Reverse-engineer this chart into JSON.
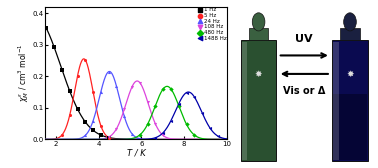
{
  "xlabel": "T / K",
  "xlim": [
    1.5,
    10
  ],
  "ylim": [
    0,
    0.42
  ],
  "yticks": [
    0.0,
    0.1,
    0.2,
    0.3,
    0.4
  ],
  "xticks": [
    2,
    4,
    6,
    8,
    10
  ],
  "frequencies": [
    1,
    5,
    24,
    108,
    480,
    1488
  ],
  "colors": [
    "#000000",
    "#ff2222",
    "#5555ff",
    "#dd44dd",
    "#00bb00",
    "#0000aa"
  ],
  "markers": [
    "s",
    "o",
    "^",
    "v",
    "D",
    "<"
  ],
  "peak_temps": [
    1.5,
    3.3,
    4.5,
    5.8,
    7.2,
    8.2
  ],
  "peak_heights": [
    0.39,
    0.255,
    0.215,
    0.185,
    0.168,
    0.15
  ],
  "widths": [
    0.75,
    0.85,
    0.95,
    1.05,
    1.15,
    1.2
  ],
  "uv_text": "UV",
  "vis_text": "Vis or Δ",
  "vial1_color": "#2a5a2a",
  "vial2_color": "#050530",
  "vial2_body_color": "#0a0a60",
  "cap_color": "#3a6a3a",
  "background_color": "#000000"
}
